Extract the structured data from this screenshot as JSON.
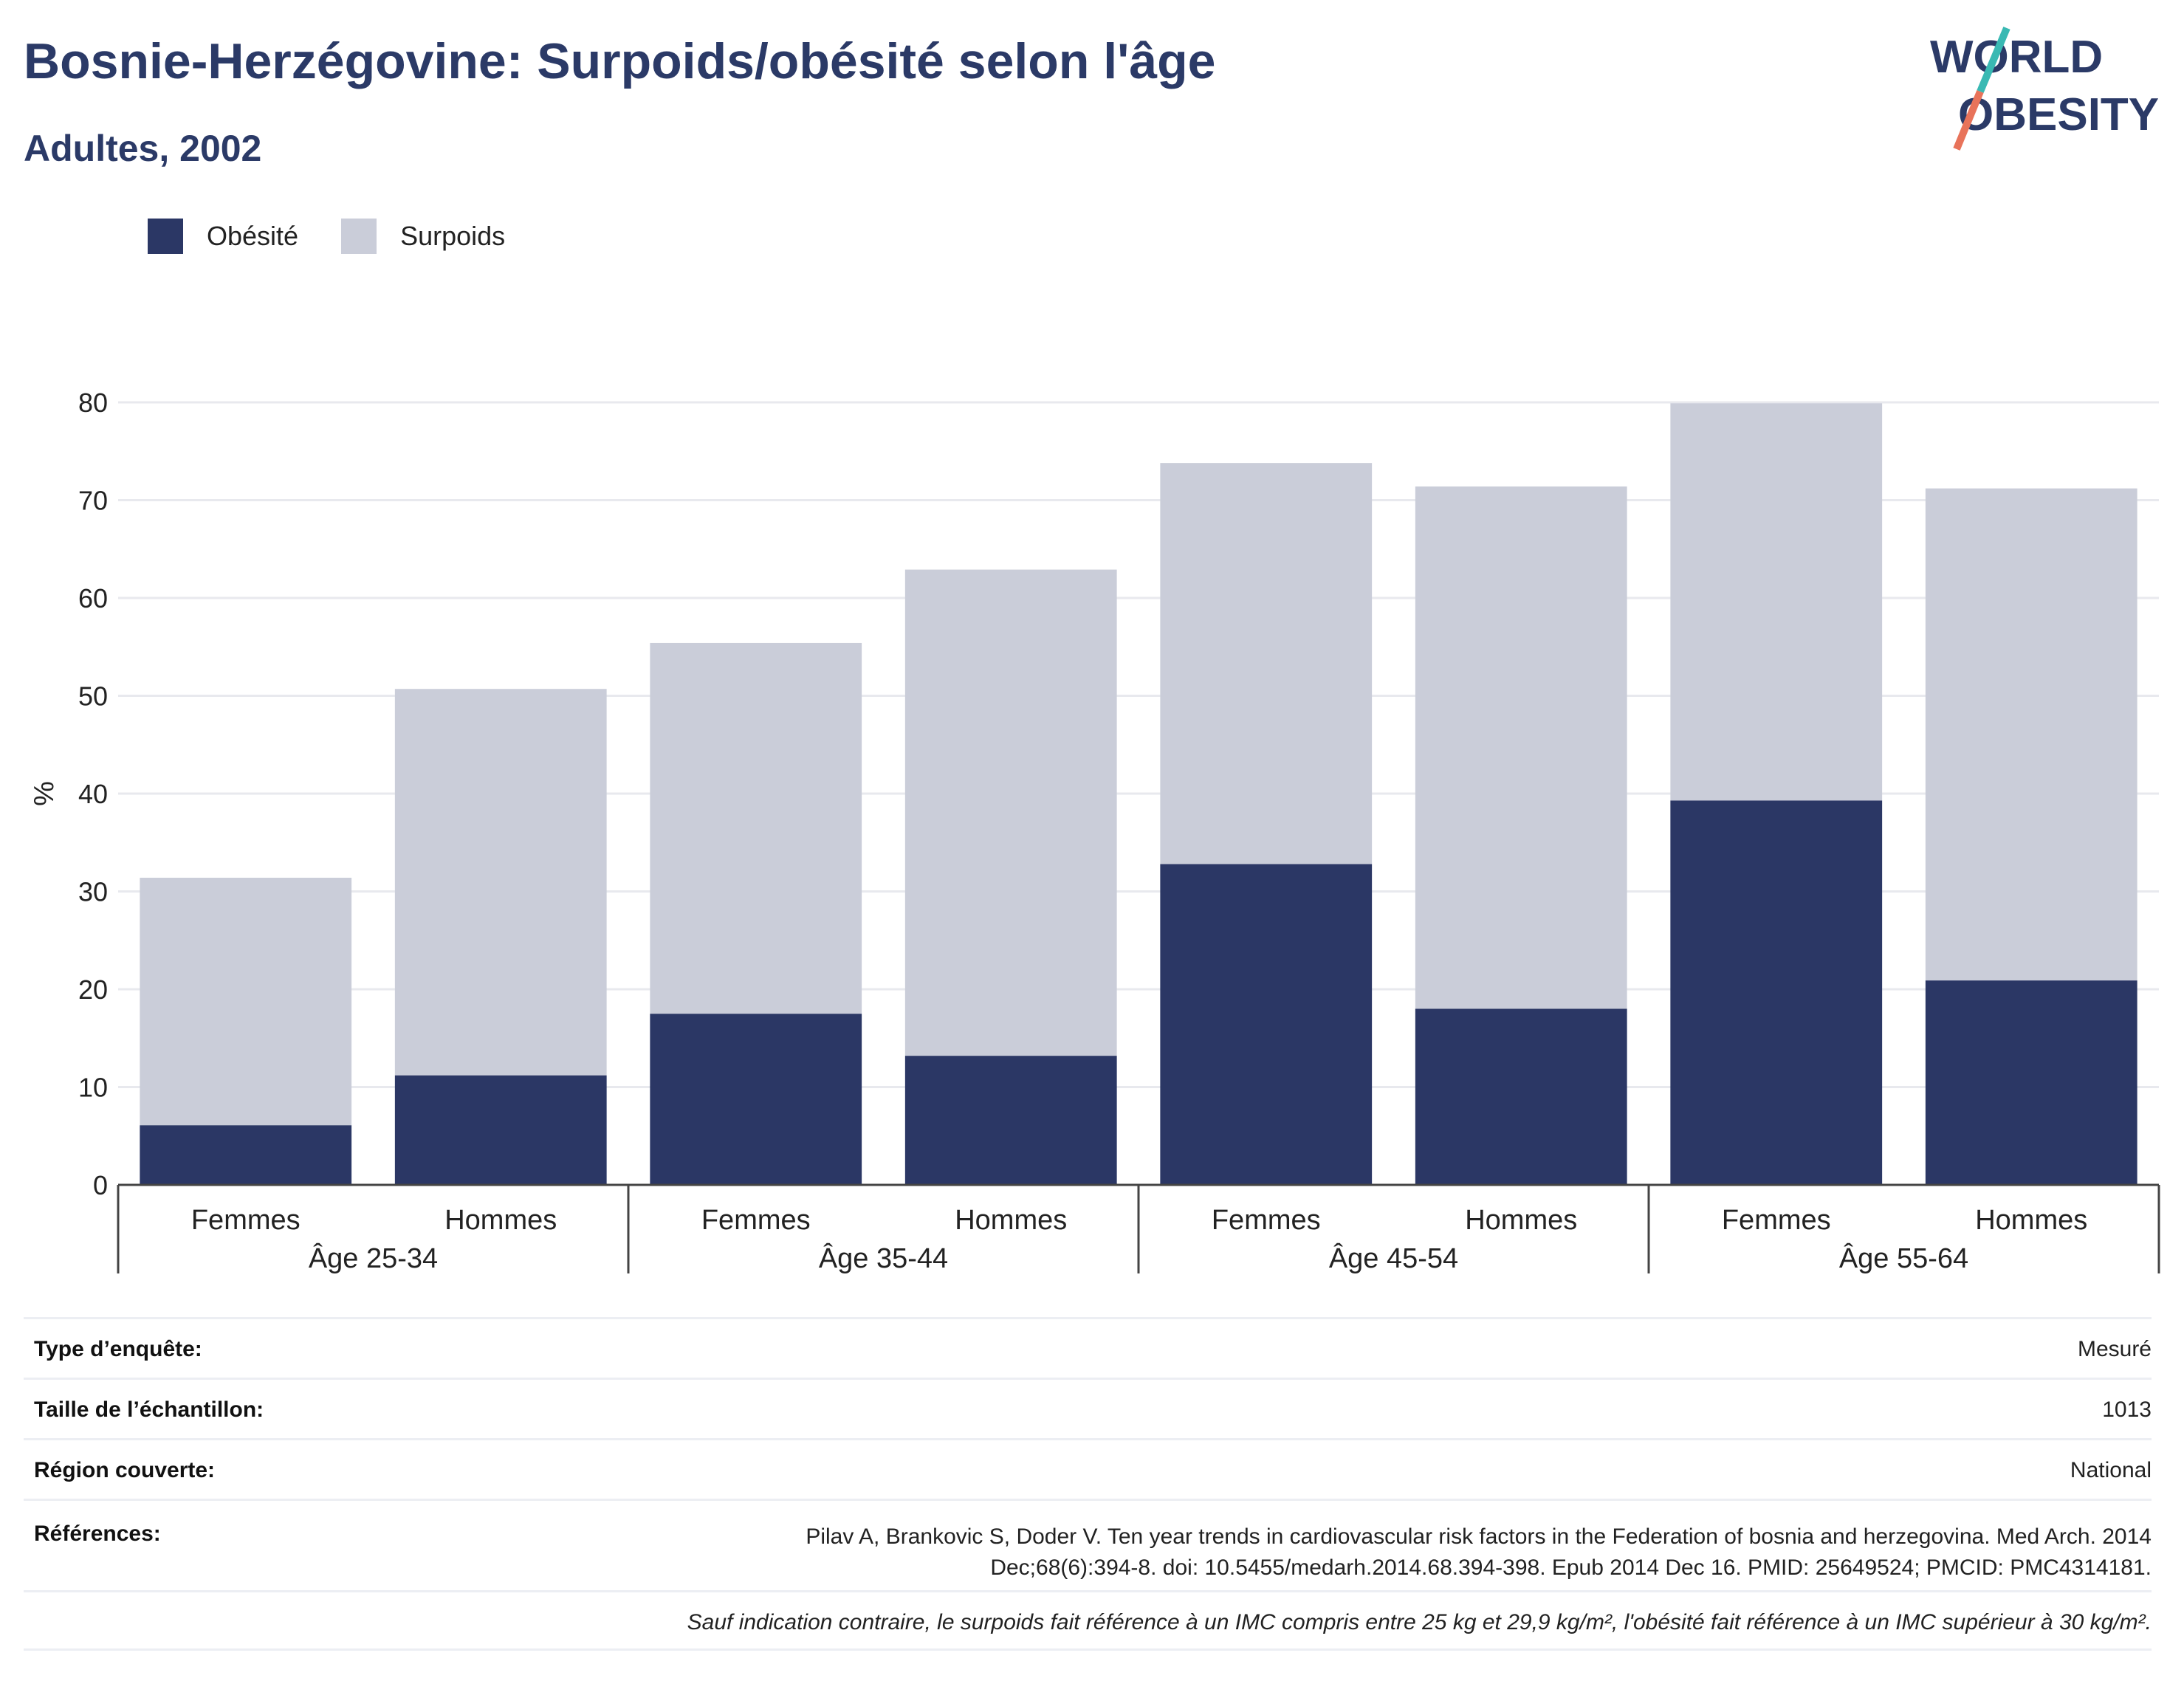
{
  "header": {
    "title": "Bosnie-Herzégovine: Surpoids/obésité selon l'âge",
    "subtitle": "Adultes, 2002"
  },
  "logo": {
    "line1": "WORLD",
    "line2": "OBESITY"
  },
  "legend": [
    {
      "label": "Obésité",
      "color": "#2b3765"
    },
    {
      "label": "Surpoids",
      "color": "#cacdd9"
    }
  ],
  "chart_data": {
    "type": "bar",
    "stacked": true,
    "ylabel": "%",
    "ylim": [
      0,
      80
    ],
    "yticks": [
      0,
      10,
      20,
      30,
      40,
      50,
      60,
      70,
      80
    ],
    "grid": true,
    "legend_position": "top-left",
    "groups": [
      "Âge 25-34",
      "Âge 35-44",
      "Âge 45-54",
      "Âge 55-64"
    ],
    "categories": [
      "Femmes",
      "Hommes",
      "Femmes",
      "Hommes",
      "Femmes",
      "Hommes",
      "Femmes",
      "Hommes"
    ],
    "series": [
      {
        "name": "Obésité",
        "color": "#2b3765",
        "values": [
          6.1,
          11.2,
          17.5,
          13.2,
          32.8,
          18.0,
          39.3,
          20.9
        ]
      },
      {
        "name": "Surpoids",
        "color": "#cacdd9",
        "values": [
          25.3,
          39.5,
          37.9,
          49.7,
          41.0,
          53.4,
          40.6,
          50.3
        ]
      }
    ]
  },
  "info": {
    "survey_type_label": "Type d’enquête:",
    "survey_type_value": "Mesuré",
    "sample_size_label": "Taille de l’échantillon:",
    "sample_size_value": "1013",
    "region_label": "Région couverte:",
    "region_value": "National",
    "references_label": "Références:",
    "references_line1": "Pilav A, Brankovic S, Doder V. Ten year trends in cardiovascular risk factors in the Federation of bosnia and herzegovina. Med Arch. 2014",
    "references_line2": "Dec;68(6):394-8. doi: 10.5455/medarh.2014.68.394-398. Epub 2014 Dec 16. PMID: 25649524; PMCID: PMC4314181.",
    "note": "Sauf indication contraire, le surpoids fait référence à un IMC compris entre 25 kg et 29,9 kg/m², l'obésité fait référence à un IMC supérieur à 30 kg/m²."
  }
}
